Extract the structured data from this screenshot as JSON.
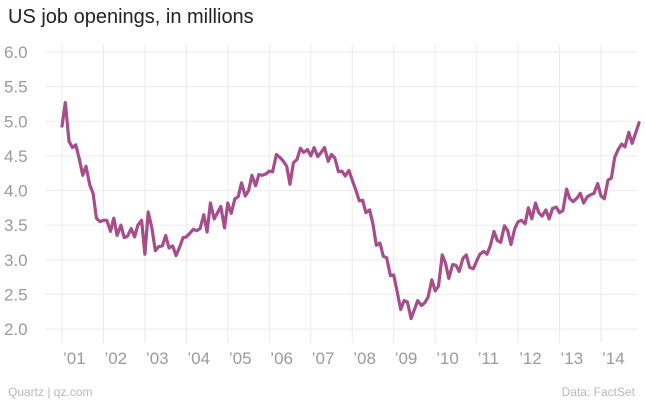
{
  "chart_data": {
    "type": "line",
    "title": "US job openings, in millions",
    "xlabel": "",
    "ylabel": "",
    "ylim": [
      2.0,
      6.0
    ],
    "xlim": [
      2001.0,
      2014.75
    ],
    "yticks": [
      {
        "value": 6.0,
        "label": "6.0"
      },
      {
        "value": 5.5,
        "label": "5.5"
      },
      {
        "value": 5.0,
        "label": "5.0"
      },
      {
        "value": 4.5,
        "label": "4.5"
      },
      {
        "value": 4.0,
        "label": "4.0"
      },
      {
        "value": 3.5,
        "label": "3.5"
      },
      {
        "value": 3.0,
        "label": "3.0"
      },
      {
        "value": 2.5,
        "label": "2.5"
      },
      {
        "value": 2.0,
        "label": "2.0"
      }
    ],
    "xticks": [
      {
        "value": 2001,
        "label": "’01"
      },
      {
        "value": 2002,
        "label": "’02"
      },
      {
        "value": 2003,
        "label": "’03"
      },
      {
        "value": 2004,
        "label": "’04"
      },
      {
        "value": 2005,
        "label": "’05"
      },
      {
        "value": 2006,
        "label": "’06"
      },
      {
        "value": 2007,
        "label": "’07"
      },
      {
        "value": 2008,
        "label": "’08"
      },
      {
        "value": 2009,
        "label": "’09"
      },
      {
        "value": 2010,
        "label": "’10"
      },
      {
        "value": 2011,
        "label": "’11"
      },
      {
        "value": 2012,
        "label": "’12"
      },
      {
        "value": 2013,
        "label": "’13"
      },
      {
        "value": 2014,
        "label": "’14"
      }
    ],
    "grid": true,
    "series": [
      {
        "color": "#a64d8b",
        "points": [
          [
            2001.0,
            4.93
          ],
          [
            2001.08,
            5.27
          ],
          [
            2001.17,
            4.71
          ],
          [
            2001.25,
            4.62
          ],
          [
            2001.33,
            4.66
          ],
          [
            2001.42,
            4.45
          ],
          [
            2001.5,
            4.22
          ],
          [
            2001.58,
            4.35
          ],
          [
            2001.67,
            4.08
          ],
          [
            2001.75,
            3.96
          ],
          [
            2001.83,
            3.6
          ],
          [
            2001.92,
            3.55
          ],
          [
            2002.0,
            3.57
          ],
          [
            2002.08,
            3.57
          ],
          [
            2002.17,
            3.41
          ],
          [
            2002.25,
            3.6
          ],
          [
            2002.33,
            3.35
          ],
          [
            2002.42,
            3.5
          ],
          [
            2002.5,
            3.32
          ],
          [
            2002.58,
            3.34
          ],
          [
            2002.67,
            3.45
          ],
          [
            2002.75,
            3.33
          ],
          [
            2002.83,
            3.5
          ],
          [
            2002.92,
            3.57
          ],
          [
            2003.0,
            3.08
          ],
          [
            2003.08,
            3.69
          ],
          [
            2003.17,
            3.45
          ],
          [
            2003.25,
            3.13
          ],
          [
            2003.33,
            3.19
          ],
          [
            2003.42,
            3.2
          ],
          [
            2003.5,
            3.35
          ],
          [
            2003.58,
            3.17
          ],
          [
            2003.67,
            3.2
          ],
          [
            2003.75,
            3.06
          ],
          [
            2003.83,
            3.17
          ],
          [
            2003.92,
            3.32
          ],
          [
            2004.0,
            3.33
          ],
          [
            2004.08,
            3.38
          ],
          [
            2004.17,
            3.44
          ],
          [
            2004.25,
            3.42
          ],
          [
            2004.33,
            3.45
          ],
          [
            2004.42,
            3.65
          ],
          [
            2004.5,
            3.4
          ],
          [
            2004.58,
            3.82
          ],
          [
            2004.67,
            3.59
          ],
          [
            2004.75,
            3.68
          ],
          [
            2004.83,
            3.77
          ],
          [
            2004.92,
            3.46
          ],
          [
            2005.0,
            3.82
          ],
          [
            2005.08,
            3.67
          ],
          [
            2005.17,
            3.88
          ],
          [
            2005.25,
            3.91
          ],
          [
            2005.33,
            4.11
          ],
          [
            2005.42,
            3.92
          ],
          [
            2005.5,
            4.0
          ],
          [
            2005.58,
            4.22
          ],
          [
            2005.67,
            4.07
          ],
          [
            2005.75,
            4.23
          ],
          [
            2005.83,
            4.22
          ],
          [
            2005.92,
            4.24
          ],
          [
            2006.0,
            4.28
          ],
          [
            2006.08,
            4.27
          ],
          [
            2006.17,
            4.52
          ],
          [
            2006.25,
            4.48
          ],
          [
            2006.33,
            4.43
          ],
          [
            2006.42,
            4.35
          ],
          [
            2006.5,
            4.09
          ],
          [
            2006.58,
            4.4
          ],
          [
            2006.67,
            4.45
          ],
          [
            2006.75,
            4.61
          ],
          [
            2006.83,
            4.55
          ],
          [
            2006.92,
            4.59
          ],
          [
            2007.0,
            4.5
          ],
          [
            2007.08,
            4.62
          ],
          [
            2007.17,
            4.49
          ],
          [
            2007.25,
            4.55
          ],
          [
            2007.33,
            4.62
          ],
          [
            2007.42,
            4.42
          ],
          [
            2007.5,
            4.52
          ],
          [
            2007.58,
            4.47
          ],
          [
            2007.67,
            4.27
          ],
          [
            2007.75,
            4.28
          ],
          [
            2007.83,
            4.21
          ],
          [
            2007.92,
            4.29
          ],
          [
            2008.0,
            4.15
          ],
          [
            2008.08,
            4.02
          ],
          [
            2008.17,
            3.85
          ],
          [
            2008.25,
            3.86
          ],
          [
            2008.33,
            3.68
          ],
          [
            2008.42,
            3.72
          ],
          [
            2008.5,
            3.51
          ],
          [
            2008.58,
            3.21
          ],
          [
            2008.67,
            3.24
          ],
          [
            2008.75,
            3.05
          ],
          [
            2008.83,
            3.03
          ],
          [
            2008.92,
            2.77
          ],
          [
            2009.0,
            2.78
          ],
          [
            2009.08,
            2.55
          ],
          [
            2009.17,
            2.28
          ],
          [
            2009.25,
            2.41
          ],
          [
            2009.33,
            2.39
          ],
          [
            2009.42,
            2.15
          ],
          [
            2009.5,
            2.28
          ],
          [
            2009.58,
            2.41
          ],
          [
            2009.67,
            2.34
          ],
          [
            2009.75,
            2.38
          ],
          [
            2009.83,
            2.46
          ],
          [
            2009.92,
            2.71
          ],
          [
            2010.0,
            2.55
          ],
          [
            2010.08,
            2.62
          ],
          [
            2010.17,
            3.07
          ],
          [
            2010.25,
            2.95
          ],
          [
            2010.33,
            2.73
          ],
          [
            2010.42,
            2.93
          ],
          [
            2010.5,
            2.92
          ],
          [
            2010.58,
            2.83
          ],
          [
            2010.67,
            3.02
          ],
          [
            2010.75,
            3.07
          ],
          [
            2010.83,
            2.89
          ],
          [
            2010.92,
            2.87
          ],
          [
            2011.0,
            2.98
          ],
          [
            2011.08,
            3.08
          ],
          [
            2011.17,
            3.12
          ],
          [
            2011.25,
            3.08
          ],
          [
            2011.33,
            3.2
          ],
          [
            2011.42,
            3.41
          ],
          [
            2011.5,
            3.28
          ],
          [
            2011.58,
            3.25
          ],
          [
            2011.67,
            3.49
          ],
          [
            2011.75,
            3.42
          ],
          [
            2011.83,
            3.22
          ],
          [
            2011.92,
            3.45
          ],
          [
            2012.0,
            3.55
          ],
          [
            2012.08,
            3.57
          ],
          [
            2012.17,
            3.52
          ],
          [
            2012.25,
            3.75
          ],
          [
            2012.33,
            3.59
          ],
          [
            2012.42,
            3.82
          ],
          [
            2012.5,
            3.68
          ],
          [
            2012.58,
            3.63
          ],
          [
            2012.67,
            3.72
          ],
          [
            2012.75,
            3.59
          ],
          [
            2012.83,
            3.74
          ],
          [
            2012.92,
            3.76
          ],
          [
            2013.0,
            3.68
          ],
          [
            2013.08,
            3.71
          ],
          [
            2013.17,
            4.02
          ],
          [
            2013.25,
            3.88
          ],
          [
            2013.33,
            3.84
          ],
          [
            2013.42,
            3.89
          ],
          [
            2013.5,
            3.96
          ],
          [
            2013.58,
            3.82
          ],
          [
            2013.67,
            3.91
          ],
          [
            2013.75,
            3.94
          ],
          [
            2013.83,
            3.96
          ],
          [
            2013.92,
            4.1
          ],
          [
            2014.0,
            3.92
          ],
          [
            2014.08,
            3.88
          ],
          [
            2014.17,
            4.15
          ],
          [
            2014.25,
            4.18
          ],
          [
            2014.33,
            4.48
          ],
          [
            2014.42,
            4.6
          ],
          [
            2014.5,
            4.67
          ],
          [
            2014.58,
            4.63
          ],
          [
            2014.67,
            4.84
          ],
          [
            2014.75,
            4.68
          ],
          [
            2014.83,
            4.82
          ],
          [
            2014.92,
            4.98
          ]
        ]
      }
    ]
  },
  "footer": {
    "left": "Quartz | qz.com",
    "right": "Data: FactSet"
  }
}
